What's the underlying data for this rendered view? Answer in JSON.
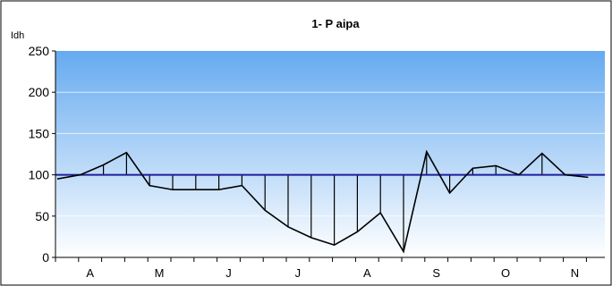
{
  "chart_data": {
    "type": "line",
    "title": "1- P aipa",
    "ylabel": "Idh",
    "xlabel": "",
    "ylim": [
      0,
      250
    ],
    "yticks": [
      0,
      50,
      100,
      150,
      200,
      250
    ],
    "month_labels": [
      "A",
      "M",
      "J",
      "J",
      "A",
      "S",
      "O",
      "N"
    ],
    "reference_value": 100,
    "series": [
      {
        "values": [
          95,
          100,
          112,
          127,
          87,
          82,
          82,
          82,
          87,
          57,
          37,
          24,
          15,
          31,
          54,
          7,
          128,
          78,
          108,
          111,
          100,
          126,
          100,
          97
        ]
      }
    ],
    "grid": true,
    "legend": "none",
    "colors": {
      "plot_top": "#66aaf0",
      "plot_bottom": "#ffffff",
      "reference_line": "#1f1f9a",
      "series_line": "#000000",
      "grid_line": "#ffffff"
    }
  }
}
